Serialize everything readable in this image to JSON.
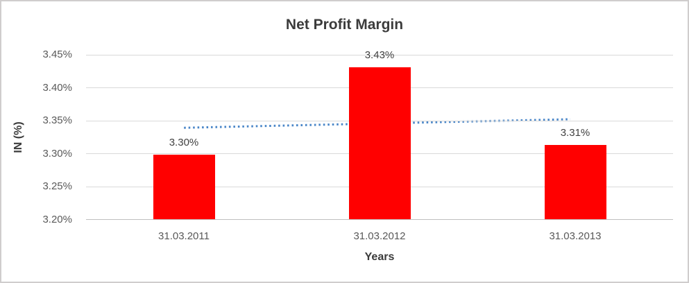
{
  "chart_data": {
    "type": "bar",
    "title": "Net Profit Margin",
    "xlabel": "Years",
    "ylabel": "IN (%)",
    "categories": [
      "31.03.2011",
      "31.03.2012",
      "31.03.2013"
    ],
    "values": [
      3.298,
      3.43,
      3.312
    ],
    "value_labels": [
      "3.30%",
      "3.43%",
      "3.31%"
    ],
    "ylim": [
      3.2,
      3.45
    ],
    "ytick_step": 0.05,
    "ytick_labels": [
      "3.20%",
      "3.25%",
      "3.30%",
      "3.35%",
      "3.40%",
      "3.45%"
    ],
    "grid": true,
    "legend": "none",
    "bar_color": "#ff0000",
    "trendline": {
      "style": "dotted",
      "color": "#4a86c8",
      "start_value": 3.339,
      "end_value": 3.352
    }
  },
  "colors": {
    "background": "#ffffff",
    "border": "#cfcdcd",
    "gridline": "#d9d9d9",
    "axis_line": "#bfbfbf",
    "title_text": "#3b3b3b",
    "tick_text": "#595959",
    "data_label_text": "#404040"
  }
}
